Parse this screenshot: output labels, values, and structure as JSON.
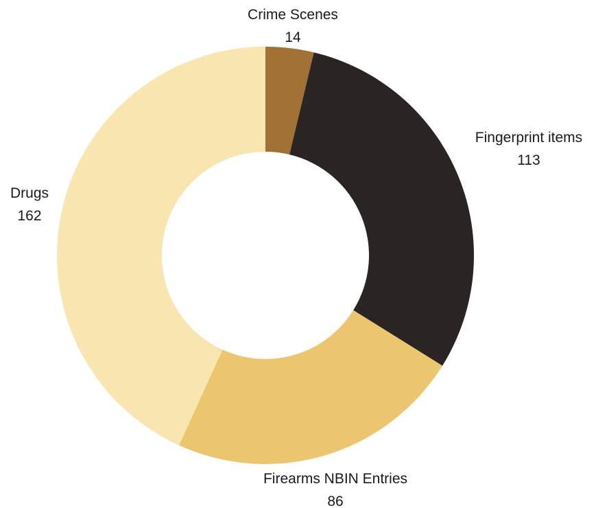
{
  "chart_data": {
    "type": "pie",
    "variant": "donut",
    "title": "",
    "slices": [
      {
        "label": "Crime Scenes",
        "value": 14,
        "color": "#a27234"
      },
      {
        "label": "Fingerprint items",
        "value": 113,
        "color": "#2a2422"
      },
      {
        "label": "Firearms NBIN Entries",
        "value": 86,
        "color": "#ecc66e"
      },
      {
        "label": "Drugs",
        "value": 162,
        "color": "#f8e5b0"
      }
    ],
    "start_angle": "12 o'clock",
    "direction": "clockwise",
    "legend": "none",
    "labels": "outside, category name above value"
  }
}
